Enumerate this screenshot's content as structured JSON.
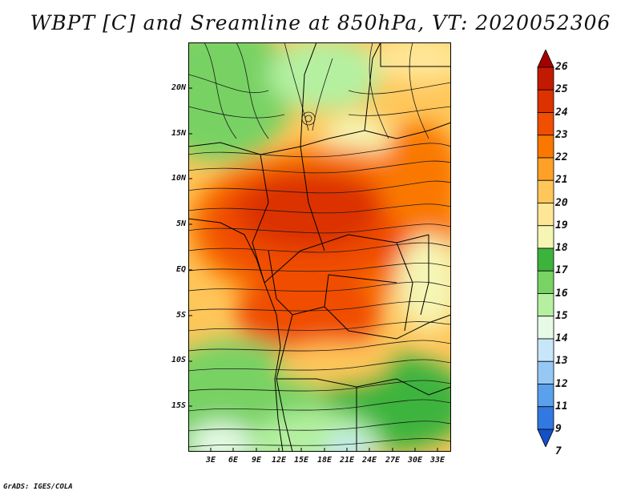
{
  "title": "WBPT [C] and Sreamline at 850hPa, VT: 2020052306",
  "y_axis_labels": [
    "20N",
    "15N",
    "10N",
    "5N",
    "EQ",
    "5S",
    "10S",
    "15S"
  ],
  "x_axis_labels": [
    "3E",
    "6E",
    "9E",
    "12E",
    "15E",
    "18E",
    "21E",
    "24E",
    "27E",
    "30E",
    "33E"
  ],
  "colorbar": {
    "labels": [
      "26",
      "25",
      "24",
      "23",
      "22",
      "21",
      "20",
      "19",
      "18",
      "17",
      "16",
      "15",
      "14",
      "13",
      "12",
      "11",
      "9",
      "7"
    ],
    "colors": [
      "#a50000",
      "#c21a00",
      "#dc3200",
      "#f04e00",
      "#fa7800",
      "#ffa028",
      "#ffc65a",
      "#ffe696",
      "#f5f5b4",
      "#3cb43c",
      "#78d264",
      "#b4f0a0",
      "#e6fae6",
      "#c8e6fa",
      "#96c8f5",
      "#5aa0eb",
      "#3278e1",
      "#1450c8"
    ]
  },
  "credit": "GrADS: IGES/COLA"
}
